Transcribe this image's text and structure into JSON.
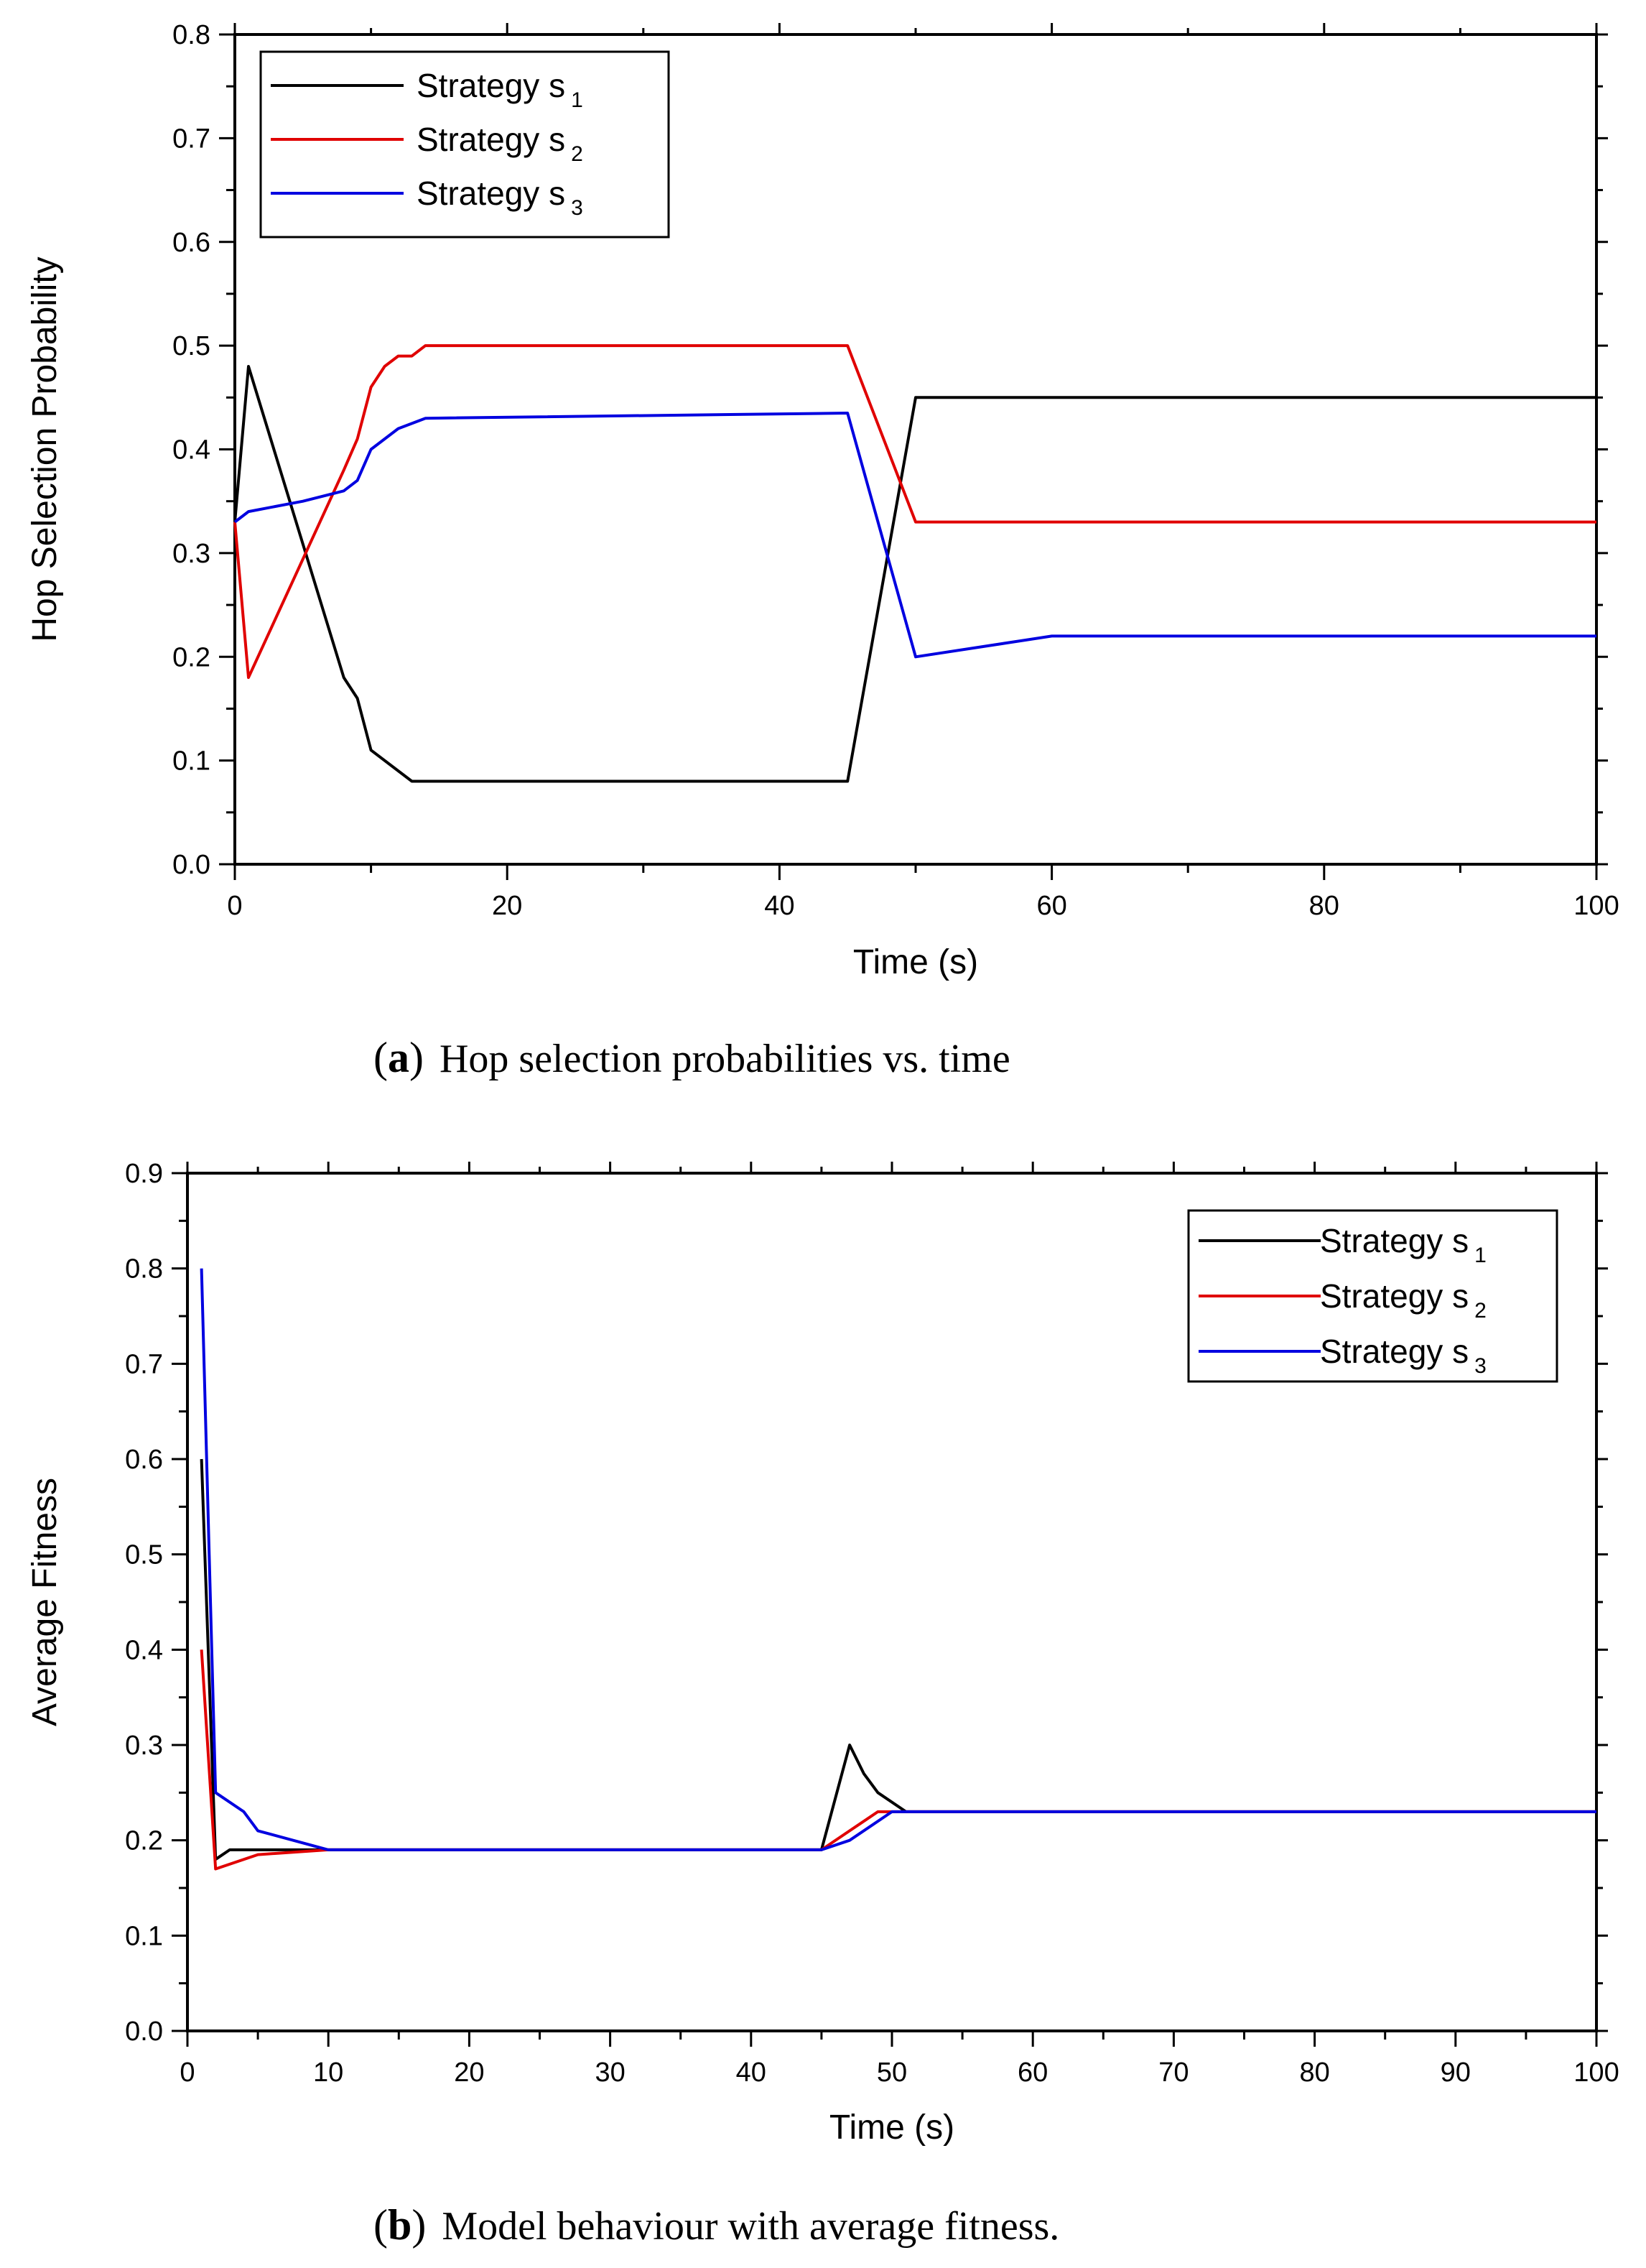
{
  "chart_data": [
    {
      "type": "line",
      "panel": "a",
      "caption_label": "a",
      "caption": "Hop selection probabilities vs. time",
      "xlabel": "Time (s)",
      "ylabel": "Hop Selection Probability",
      "xlim": [
        0,
        100
      ],
      "ylim": [
        0,
        0.8
      ],
      "xticks": [
        0,
        20,
        40,
        60,
        80,
        100
      ],
      "xtick_labels": [
        "0",
        "20",
        "40",
        "60",
        "80",
        "100"
      ],
      "yticks": [
        0.0,
        0.1,
        0.2,
        0.3,
        0.4,
        0.5,
        0.6,
        0.7,
        0.8
      ],
      "ytick_labels": [
        "0.0",
        "0.1",
        "0.2",
        "0.3",
        "0.4",
        "0.5",
        "0.6",
        "0.7",
        "0.8"
      ],
      "legend_position": "top-left",
      "series": [
        {
          "name": "Strategy s",
          "subscript": "1",
          "color": "#000000",
          "x": [
            0,
            1,
            8,
            9,
            10,
            13,
            45,
            50,
            100
          ],
          "y": [
            0.33,
            0.48,
            0.18,
            0.16,
            0.11,
            0.08,
            0.08,
            0.45,
            0.45
          ]
        },
        {
          "name": "Strategy s",
          "subscript": "2",
          "color": "#e00000",
          "x": [
            0,
            1,
            8,
            9,
            10,
            11,
            12,
            13,
            14,
            45,
            50,
            100
          ],
          "y": [
            0.33,
            0.18,
            0.38,
            0.41,
            0.46,
            0.48,
            0.49,
            0.49,
            0.5,
            0.5,
            0.33,
            0.33
          ]
        },
        {
          "name": "Strategy s",
          "subscript": "3",
          "color": "#0000e0",
          "x": [
            0,
            1,
            5,
            8,
            9,
            10,
            12,
            14,
            45,
            50,
            60,
            100
          ],
          "y": [
            0.33,
            0.34,
            0.35,
            0.36,
            0.37,
            0.4,
            0.42,
            0.43,
            0.435,
            0.2,
            0.22,
            0.22
          ]
        }
      ]
    },
    {
      "type": "line",
      "panel": "b",
      "caption_label": "b",
      "caption": "Model behaviour with average fitness.",
      "xlabel": "Time (s)",
      "ylabel": "Average Fitness",
      "xlim": [
        0,
        100
      ],
      "ylim": [
        0,
        0.9
      ],
      "xticks": [
        0,
        10,
        20,
        30,
        40,
        50,
        60,
        70,
        80,
        90,
        100
      ],
      "xtick_labels": [
        "0",
        "10",
        "20",
        "30",
        "40",
        "50",
        "60",
        "70",
        "80",
        "90",
        "100"
      ],
      "yticks": [
        0.0,
        0.1,
        0.2,
        0.3,
        0.4,
        0.5,
        0.6,
        0.7,
        0.8,
        0.9
      ],
      "ytick_labels": [
        "0.0",
        "0.1",
        "0.2",
        "0.3",
        "0.4",
        "0.5",
        "0.6",
        "0.7",
        "0.8",
        "0.9"
      ],
      "legend_position": "top-right",
      "series": [
        {
          "name": "Strategy s",
          "subscript": "1",
          "color": "#000000",
          "x": [
            1,
            2,
            3,
            5,
            10,
            45,
            47,
            48,
            49,
            51,
            100
          ],
          "y": [
            0.6,
            0.18,
            0.19,
            0.19,
            0.19,
            0.19,
            0.3,
            0.27,
            0.25,
            0.23,
            0.23
          ]
        },
        {
          "name": "Strategy s",
          "subscript": "2",
          "color": "#e00000",
          "x": [
            1,
            2,
            5,
            10,
            45,
            47,
            49,
            50,
            100
          ],
          "y": [
            0.4,
            0.17,
            0.185,
            0.19,
            0.19,
            0.21,
            0.23,
            0.23,
            0.23
          ]
        },
        {
          "name": "Strategy s",
          "subscript": "3",
          "color": "#0000e0",
          "x": [
            1,
            2,
            4,
            5,
            10,
            45,
            47,
            50,
            100
          ],
          "y": [
            0.8,
            0.25,
            0.23,
            0.21,
            0.19,
            0.19,
            0.2,
            0.23,
            0.23
          ]
        }
      ]
    }
  ]
}
